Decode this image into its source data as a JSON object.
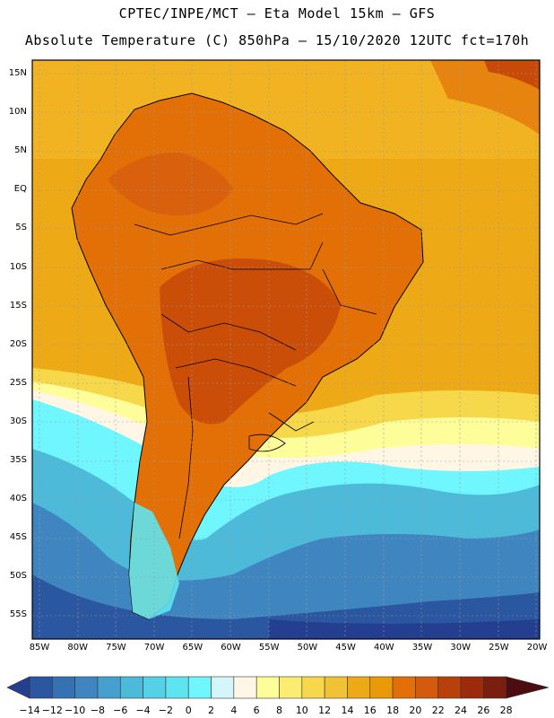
{
  "title_line1": "CPTEC/INPE/MCT –  Eta Model 15km – GFS",
  "title_line2": "Absolute Temperature (C) 850hPa – 15/10/2020 12UTC fct=170h",
  "lat_labels": [
    "15N",
    "10N",
    "5N",
    "EQ",
    "5S",
    "10S",
    "15S",
    "20S",
    "25S",
    "30S",
    "35S",
    "40S",
    "45S",
    "50S",
    "55S"
  ],
  "lon_labels": [
    "85W",
    "80W",
    "75W",
    "70W",
    "65W",
    "60W",
    "55W",
    "50W",
    "45W",
    "40W",
    "35W",
    "30W",
    "25W",
    "20W"
  ],
  "colorbar": {
    "labels": [
      "-14",
      "-12",
      "-10",
      "-8",
      "-6",
      "-4",
      "-2",
      "0",
      "2",
      "4",
      "6",
      "8",
      "10",
      "12",
      "14",
      "16",
      "18",
      "20",
      "22",
      "24",
      "26",
      "28"
    ],
    "colors": [
      "#243f8f",
      "#2b56a0",
      "#3671b3",
      "#3f86c0",
      "#45a0cf",
      "#4cbad8",
      "#55d0e6",
      "#5ee3f0",
      "#6ff6ff",
      "#d4f6fb",
      "#fff6e6",
      "#fdfd9a",
      "#fbed72",
      "#f7d84a",
      "#f1c136",
      "#edaa16",
      "#eb9a07",
      "#e36f07",
      "#d45a0e",
      "#b8400b",
      "#9c2a0c",
      "#7a1e0f",
      "#4c0c10"
    ]
  },
  "colors": {
    "ocean_warm": "#edaa16",
    "land": "#e36f07",
    "land_hot": "#c74a09",
    "coast": "#000000"
  }
}
